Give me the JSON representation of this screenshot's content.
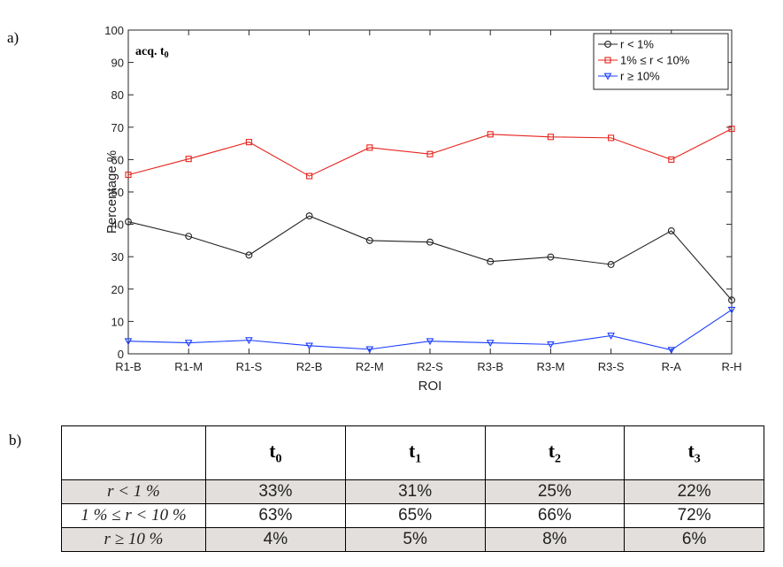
{
  "panel_a_label": "a)",
  "panel_b_label": "b)",
  "chart_data": {
    "type": "line",
    "title": "",
    "annotation": "acq. t",
    "annotation_sub": "0",
    "xlabel": "ROI",
    "ylabel": "Percentage %",
    "ylim": [
      0,
      100
    ],
    "yticks": [
      0,
      10,
      20,
      30,
      40,
      50,
      60,
      70,
      80,
      90,
      100
    ],
    "categories": [
      "R1-B",
      "R1-M",
      "R1-S",
      "R2-B",
      "R2-M",
      "R2-S",
      "R3-B",
      "R3-M",
      "R3-S",
      "R-A",
      "R-H"
    ],
    "legend_position": "top-right",
    "grid": false,
    "series": [
      {
        "name": "r < 1%",
        "color": "#222222",
        "marker": "circle",
        "values": [
          40.8,
          36.3,
          30.5,
          42.6,
          35.0,
          34.5,
          28.5,
          29.9,
          27.6,
          38.0,
          16.6
        ]
      },
      {
        "name": "1% ≤ r < 10%",
        "color": "#e8231c",
        "marker": "square",
        "values": [
          55.3,
          60.2,
          65.4,
          54.9,
          63.7,
          61.7,
          67.8,
          67.0,
          66.7,
          60.0,
          69.5
        ]
      },
      {
        "name": "r ≥ 10%",
        "color": "#1a3dff",
        "marker": "triangle-down",
        "values": [
          3.9,
          3.4,
          4.2,
          2.5,
          1.4,
          3.9,
          3.4,
          2.9,
          5.6,
          1.2,
          13.6
        ]
      }
    ]
  },
  "table": {
    "headers": [
      {
        "main": "t",
        "sub": "0"
      },
      {
        "main": "t",
        "sub": "1"
      },
      {
        "main": "t",
        "sub": "2"
      },
      {
        "main": "t",
        "sub": "3"
      }
    ],
    "rows": [
      {
        "label": "r < 1 %",
        "color": "#000000",
        "values": [
          "33%",
          "31%",
          "25%",
          "22%"
        ]
      },
      {
        "label": "1 % ≤ r < 10 %",
        "color": "#e8231c",
        "values": [
          "63%",
          "65%",
          "66%",
          "72%"
        ]
      },
      {
        "label": "r ≥ 10 %",
        "color": "#1a3dff",
        "values": [
          "4%",
          "5%",
          "8%",
          "6%"
        ]
      }
    ]
  }
}
